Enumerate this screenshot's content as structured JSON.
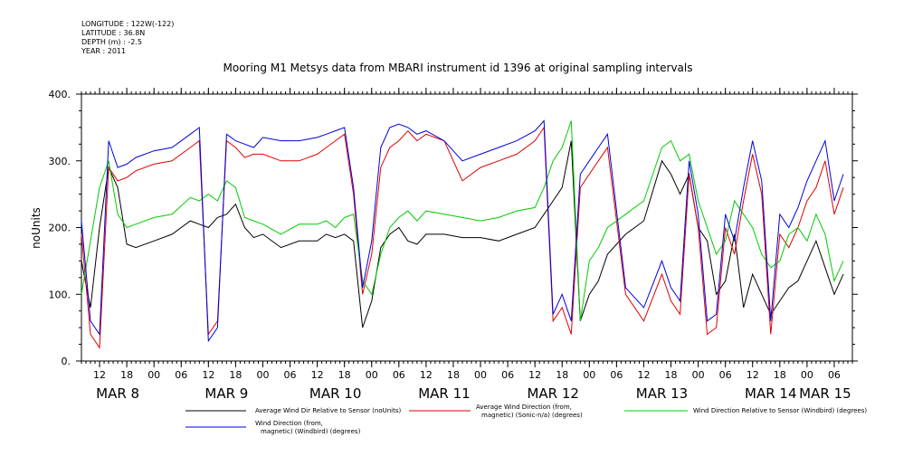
{
  "header": {
    "meta_lines": [
      "LONGITUDE : 122W(-122)",
      "LATITUDE : 36.8N",
      "DEPTH (m) : -2.5",
      "YEAR : 2011"
    ],
    "title": "Mooring M1 Metsys data from MBARI instrument id 1396 at original sampling intervals"
  },
  "chart_data": {
    "type": "line",
    "title": "Mooring M1 Metsys data from MBARI instrument id 1396 at original sampling intervals",
    "ylabel": "noUnits",
    "xlabel": "",
    "ylim": [
      0,
      400
    ],
    "yticks": [
      "0.",
      "100.",
      "200.",
      "300.",
      "400."
    ],
    "x_unit": "hours since MAR 8 00:00 (2011)",
    "xlim": [
      8,
      178
    ],
    "x_tick_labels": [
      "12",
      "18",
      "00",
      "06",
      "12",
      "18",
      "00",
      "06",
      "12",
      "18",
      "00",
      "06",
      "12",
      "18",
      "00",
      "06",
      "12",
      "18",
      "00",
      "06",
      "12",
      "18",
      "00",
      "06",
      "12",
      "18",
      "00",
      "06"
    ],
    "x_tick_hours": [
      12,
      18,
      24,
      30,
      36,
      42,
      48,
      54,
      60,
      66,
      72,
      78,
      84,
      90,
      96,
      102,
      108,
      114,
      120,
      126,
      132,
      138,
      144,
      150,
      156,
      162,
      168,
      174
    ],
    "day_labels": [
      "MAR  8",
      "MAR  9",
      "MAR 10",
      "MAR 11",
      "MAR 12",
      "MAR 13",
      "MAR 14",
      "MAR 15"
    ],
    "day_label_hours": [
      16,
      40,
      64,
      88,
      112,
      136,
      160,
      172
    ],
    "series": [
      {
        "name": "Average Wind Dir Relative to Sensor (noUnits)",
        "color": "#000000",
        "x": [
          8,
          10,
          12,
          14,
          16,
          18,
          20,
          24,
          28,
          32,
          34,
          36,
          38,
          40,
          42,
          44,
          46,
          48,
          52,
          56,
          60,
          62,
          64,
          66,
          68,
          70,
          72,
          74,
          76,
          78,
          80,
          82,
          84,
          88,
          92,
          96,
          100,
          104,
          108,
          110,
          112,
          114,
          116,
          118,
          120,
          122,
          124,
          128,
          132,
          136,
          138,
          140,
          142,
          144,
          146,
          148,
          150,
          152,
          154,
          156,
          158,
          160,
          162,
          164,
          166,
          168,
          170,
          172,
          174,
          176
        ],
        "y": [
          150,
          80,
          200,
          290,
          260,
          175,
          170,
          180,
          190,
          210,
          205,
          200,
          215,
          220,
          235,
          200,
          185,
          190,
          170,
          180,
          180,
          190,
          185,
          190,
          180,
          50,
          90,
          170,
          190,
          200,
          180,
          175,
          190,
          190,
          185,
          185,
          180,
          190,
          200,
          220,
          240,
          260,
          330,
          60,
          100,
          120,
          160,
          190,
          210,
          300,
          280,
          250,
          280,
          200,
          180,
          100,
          120,
          190,
          80,
          130,
          100,
          70,
          90,
          110,
          120,
          150,
          180,
          140,
          100,
          130
        ]
      },
      {
        "name": "Average Wind Direction (from, magnetic) (Sonic-n/a) (degrees)",
        "color": "#e00000",
        "x": [
          8,
          10,
          12,
          14,
          16,
          18,
          20,
          24,
          28,
          32,
          34,
          36,
          38,
          40,
          42,
          44,
          46,
          48,
          52,
          56,
          60,
          62,
          64,
          66,
          68,
          70,
          72,
          74,
          76,
          78,
          80,
          82,
          84,
          88,
          92,
          96,
          100,
          104,
          108,
          110,
          112,
          114,
          116,
          118,
          120,
          122,
          124,
          128,
          132,
          136,
          138,
          140,
          142,
          144,
          146,
          148,
          150,
          152,
          154,
          156,
          158,
          160,
          162,
          164,
          166,
          168,
          170,
          172,
          174,
          176
        ],
        "y": [
          190,
          40,
          20,
          290,
          270,
          275,
          285,
          295,
          300,
          320,
          330,
          40,
          60,
          330,
          320,
          305,
          310,
          310,
          300,
          300,
          310,
          320,
          330,
          340,
          250,
          100,
          160,
          290,
          320,
          330,
          345,
          330,
          340,
          330,
          270,
          290,
          300,
          310,
          330,
          350,
          60,
          80,
          40,
          260,
          280,
          300,
          320,
          100,
          60,
          130,
          90,
          70,
          280,
          200,
          40,
          50,
          200,
          160,
          240,
          310,
          250,
          40,
          190,
          170,
          200,
          240,
          260,
          300,
          220,
          260
        ]
      },
      {
        "name": "Wind Direction Relative to Sensor (Windbird) (degrees)",
        "color": "#00cc00",
        "x": [
          8,
          10,
          12,
          14,
          16,
          18,
          20,
          24,
          28,
          32,
          34,
          36,
          38,
          40,
          42,
          44,
          46,
          48,
          52,
          56,
          60,
          62,
          64,
          66,
          68,
          70,
          72,
          74,
          76,
          78,
          80,
          82,
          84,
          88,
          92,
          96,
          100,
          104,
          108,
          110,
          112,
          114,
          116,
          118,
          120,
          122,
          124,
          128,
          132,
          136,
          138,
          140,
          142,
          144,
          146,
          148,
          150,
          152,
          154,
          156,
          158,
          160,
          162,
          164,
          166,
          168,
          170,
          172,
          174,
          176
        ],
        "y": [
          100,
          180,
          260,
          300,
          220,
          200,
          205,
          215,
          220,
          245,
          240,
          250,
          240,
          270,
          260,
          215,
          210,
          205,
          190,
          205,
          205,
          210,
          200,
          215,
          220,
          120,
          100,
          160,
          200,
          215,
          225,
          210,
          225,
          220,
          215,
          210,
          215,
          225,
          230,
          260,
          300,
          320,
          360,
          60,
          150,
          170,
          200,
          220,
          240,
          320,
          330,
          300,
          310,
          240,
          200,
          160,
          180,
          240,
          220,
          200,
          160,
          140,
          150,
          190,
          200,
          180,
          220,
          190,
          120,
          150
        ]
      },
      {
        "name": "Wind Direction (from, magnetic) (Windbird) (degrees)",
        "color": "#0000dd",
        "x": [
          8,
          10,
          12,
          14,
          16,
          18,
          20,
          24,
          28,
          32,
          34,
          36,
          38,
          40,
          42,
          44,
          46,
          48,
          52,
          56,
          60,
          62,
          64,
          66,
          68,
          70,
          72,
          74,
          76,
          78,
          80,
          82,
          84,
          88,
          92,
          96,
          100,
          104,
          108,
          110,
          112,
          114,
          116,
          118,
          120,
          122,
          124,
          128,
          132,
          136,
          138,
          140,
          142,
          144,
          146,
          148,
          150,
          152,
          154,
          156,
          158,
          160,
          162,
          164,
          166,
          168,
          170,
          172,
          174,
          176
        ],
        "y": [
          210,
          60,
          40,
          330,
          290,
          295,
          305,
          315,
          320,
          340,
          350,
          30,
          50,
          340,
          330,
          325,
          320,
          335,
          330,
          330,
          335,
          340,
          345,
          350,
          260,
          110,
          180,
          320,
          350,
          355,
          350,
          340,
          345,
          330,
          300,
          310,
          320,
          330,
          345,
          360,
          70,
          100,
          60,
          280,
          300,
          320,
          340,
          110,
          80,
          150,
          110,
          90,
          300,
          220,
          60,
          70,
          220,
          180,
          260,
          330,
          270,
          60,
          220,
          200,
          230,
          270,
          300,
          330,
          240,
          280
        ]
      }
    ],
    "legend": {
      "placement": "bottom",
      "items": [
        {
          "label": "Average Wind Dir Relative to Sensor (noUnits)",
          "color": "#000000"
        },
        {
          "label": "Average Wind Direction (from, magnetic) (Sonic-n/a) (degrees)",
          "color": "#e00000",
          "line1": "Average Wind Direction (from,",
          "line2": "magnetic) (Sonic-n/a) (degrees)"
        },
        {
          "label": "Wind Direction Relative to Sensor (Windbird) (degrees)",
          "color": "#00cc00"
        },
        {
          "label": "Wind Direction (from, magnetic) (Windbird) (degrees)",
          "color": "#0000dd",
          "line1": "Wind Direction (from,",
          "line2": "magnetic) (Windbird) (degrees)"
        }
      ]
    }
  }
}
